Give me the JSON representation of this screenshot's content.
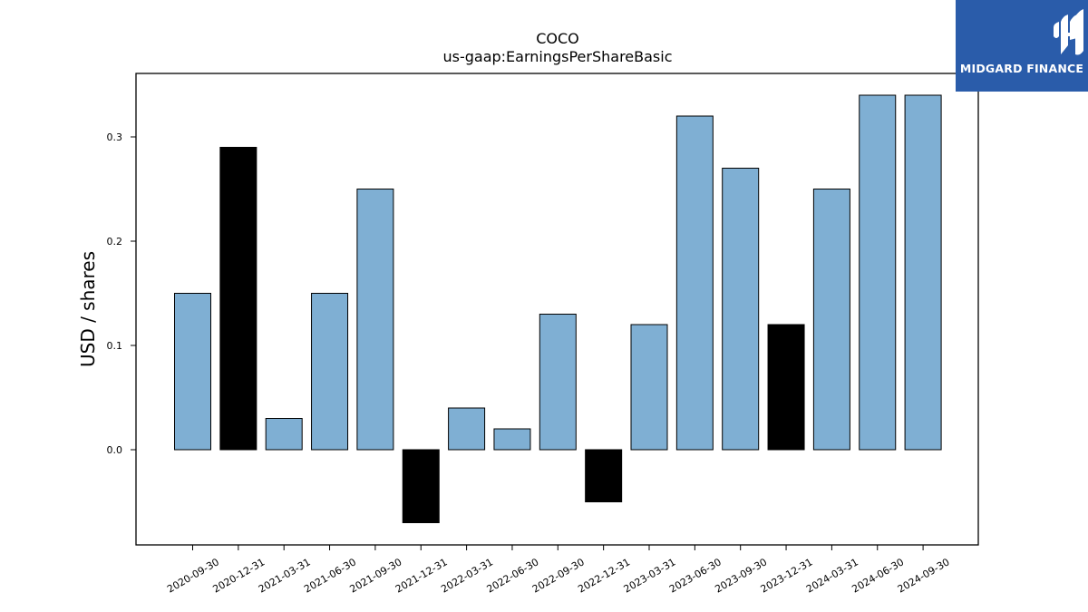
{
  "chart_data": {
    "type": "bar",
    "title": "COCO",
    "subtitle": "us-gaap:EarningsPerShareBasic",
    "xlabel": "",
    "ylabel": "USD / shares",
    "categories": [
      "2020-09-30",
      "2020-12-31",
      "2021-03-31",
      "2021-06-30",
      "2021-09-30",
      "2021-12-31",
      "2022-03-31",
      "2022-06-30",
      "2022-09-30",
      "2022-12-31",
      "2023-03-31",
      "2023-06-30",
      "2023-09-30",
      "2023-12-31",
      "2024-03-31",
      "2024-06-30",
      "2024-09-30"
    ],
    "values": [
      0.15,
      0.29,
      0.03,
      0.15,
      0.25,
      -0.07,
      0.04,
      0.02,
      0.13,
      -0.05,
      0.12,
      0.32,
      0.27,
      0.12,
      0.25,
      0.34,
      0.34
    ],
    "highlight": [
      false,
      true,
      false,
      false,
      false,
      true,
      false,
      false,
      false,
      true,
      false,
      false,
      false,
      true,
      false,
      false,
      false
    ],
    "yticks": [
      0.0,
      0.1,
      0.2,
      0.3
    ],
    "ytick_labels": [
      "0.0",
      "0.1",
      "0.2",
      "0.3"
    ],
    "ylim": [
      -0.091,
      0.36
    ],
    "grid": false,
    "colors": {
      "bar": "#7fafd3",
      "highlight": "#000000",
      "edge": "#000000"
    }
  },
  "logo": {
    "text": "MIDGARD FINANCE",
    "background": "#2a5caa"
  }
}
